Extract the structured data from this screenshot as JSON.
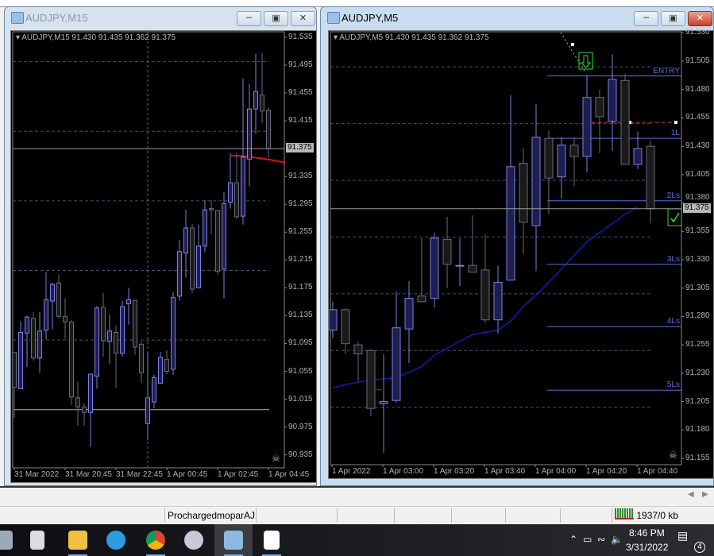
{
  "left_window": {
    "title": "AUDJPY,M15",
    "header": "AUDJPY,M15  91.430 91.435 91.362 91.375",
    "bid_label": "91.375",
    "bid": 91.375,
    "price_labels": [
      "91.535",
      "91.495",
      "91.455",
      "91.415",
      "91.335",
      "91.295",
      "91.255",
      "91.215",
      "91.175",
      "91.135",
      "91.095",
      "91.055",
      "91.015",
      "90.975",
      "90.935"
    ],
    "time_labels": [
      "31 Mar 2022",
      "31 Mar 20:45",
      "31 Mar 22:45",
      "1 Apr 00:45",
      "1 Apr 02:45",
      "1 Apr 04:45"
    ],
    "grid_prices": [
      91.5,
      91.4,
      91.3,
      91.2,
      91.1
    ],
    "horizontal_line_price": 91.0,
    "horizontal_line_color": "#f0a070",
    "signal_line": [
      91.365,
      91.355
    ],
    "candles_ohlc": [
      [
        91.082,
        91.082,
        90.988,
        91.032
      ],
      [
        91.03,
        91.127,
        91.03,
        91.111
      ],
      [
        91.11,
        91.135,
        91.061,
        91.133
      ],
      [
        91.131,
        91.14,
        91.07,
        91.074
      ],
      [
        91.074,
        91.14,
        91.053,
        91.113
      ],
      [
        91.114,
        91.198,
        91.101,
        91.158
      ],
      [
        91.156,
        91.182,
        91.116,
        91.18
      ],
      [
        91.182,
        91.194,
        91.131,
        91.134
      ],
      [
        91.134,
        91.16,
        91.102,
        91.126
      ],
      [
        91.126,
        91.129,
        91.007,
        91.018
      ],
      [
        91.017,
        91.04,
        90.977,
        91.004
      ],
      [
        91.004,
        91.009,
        90.977,
        90.996
      ],
      [
        90.996,
        91.051,
        90.946,
        91.051
      ],
      [
        91.048,
        91.149,
        91.03,
        91.146
      ],
      [
        91.147,
        91.168,
        91.076,
        91.099
      ],
      [
        91.098,
        91.137,
        91.066,
        91.113
      ],
      [
        91.111,
        91.121,
        91.031,
        91.081
      ],
      [
        91.081,
        91.156,
        91.076,
        91.148
      ],
      [
        91.152,
        91.175,
        91.122,
        91.158
      ],
      [
        91.157,
        91.157,
        91.079,
        91.09
      ],
      [
        91.094,
        91.098,
        91.038,
        91.053
      ],
      [
        90.98,
        91.083,
        90.956,
        91.017
      ],
      [
        91.011,
        91.05,
        91.002,
        91.046
      ],
      [
        91.038,
        91.083,
        91.038,
        91.075
      ],
      [
        91.072,
        91.085,
        91.051,
        91.055
      ],
      [
        91.058,
        91.169,
        91.05,
        91.161
      ],
      [
        91.163,
        91.244,
        91.157,
        91.227
      ],
      [
        91.225,
        91.287,
        91.19,
        91.261
      ],
      [
        91.261,
        91.267,
        91.168,
        91.173
      ],
      [
        91.175,
        91.266,
        91.175,
        91.235
      ],
      [
        91.235,
        91.301,
        91.226,
        91.287
      ],
      [
        91.289,
        91.301,
        91.252,
        91.287
      ],
      [
        91.286,
        91.287,
        91.194,
        91.199
      ],
      [
        91.202,
        91.312,
        91.16,
        91.296
      ],
      [
        91.298,
        91.369,
        91.289,
        91.326
      ],
      [
        91.326,
        91.369,
        91.274,
        91.277
      ],
      [
        91.278,
        91.476,
        91.266,
        91.363
      ],
      [
        91.36,
        91.468,
        91.321,
        91.432
      ],
      [
        91.432,
        91.511,
        91.396,
        91.457
      ],
      [
        91.452,
        91.512,
        91.412,
        91.429
      ],
      [
        91.43,
        91.435,
        91.362,
        91.375
      ]
    ]
  },
  "right_window": {
    "title": "AUDJPY,M5",
    "header": "AUDJPY,M5  91.430 91.435 91.362 91.375",
    "bid_label": "91.375",
    "bid": 91.375,
    "price_labels": [
      "91.530",
      "91.505",
      "91.480",
      "91.455",
      "91.430",
      "91.405",
      "91.380",
      "91.355",
      "91.330",
      "91.305",
      "91.280",
      "91.255",
      "91.230",
      "91.205",
      "91.180",
      "91.155"
    ],
    "time_labels": [
      "1 Apr 2022",
      "1 Apr 03:00",
      "1 Apr 03:20",
      "1 Apr 03:40",
      "1 Apr 04:00",
      "1 Apr 04:20",
      "1 Apr 04:40"
    ],
    "grid_prices": [
      91.5,
      91.45,
      91.4,
      91.35,
      91.3,
      91.25,
      91.2
    ],
    "levels": [
      {
        "label": "ENTRY",
        "price": 91.492
      },
      {
        "label": "1L",
        "price": 91.437
      },
      {
        "label": "2Ls",
        "price": 91.382
      },
      {
        "label": "3Ls",
        "price": 91.326
      },
      {
        "label": "4Ls",
        "price": 91.271
      },
      {
        "label": "5Ls",
        "price": 91.215
      }
    ],
    "stop_line_price": 91.451,
    "ma_color": "#1a1ad0",
    "moving_average": [
      91.217,
      91.22,
      91.222,
      91.224,
      91.225,
      91.226,
      91.231,
      91.236,
      91.246,
      91.252,
      91.258,
      91.264,
      91.266,
      91.268,
      91.276,
      91.289,
      91.299,
      91.31,
      91.322,
      91.334,
      91.346,
      91.354,
      91.362,
      91.37,
      91.377
    ],
    "candles_ohlc": [
      [
        91.268,
        91.293,
        91.261,
        91.286
      ],
      [
        91.286,
        91.287,
        91.247,
        91.256
      ],
      [
        91.255,
        91.258,
        91.223,
        91.247
      ],
      [
        91.25,
        91.251,
        91.192,
        91.199
      ],
      [
        91.203,
        91.247,
        91.16,
        91.205
      ],
      [
        91.206,
        91.302,
        91.204,
        91.27
      ],
      [
        91.269,
        91.311,
        91.239,
        91.296
      ],
      [
        91.298,
        91.349,
        91.293,
        91.293
      ],
      [
        91.296,
        91.354,
        91.288,
        91.349
      ],
      [
        91.348,
        91.368,
        91.305,
        91.326
      ],
      [
        91.325,
        91.349,
        91.307,
        91.325
      ],
      [
        91.325,
        91.369,
        91.319,
        91.319
      ],
      [
        91.321,
        91.352,
        91.274,
        91.277
      ],
      [
        91.277,
        91.325,
        91.265,
        91.31
      ],
      [
        91.312,
        91.475,
        91.312,
        91.412
      ],
      [
        91.415,
        91.428,
        91.335,
        91.363
      ],
      [
        91.36,
        91.467,
        91.32,
        91.438
      ],
      [
        91.437,
        91.444,
        91.37,
        91.402
      ],
      [
        91.403,
        91.438,
        91.384,
        91.431
      ],
      [
        91.431,
        91.438,
        91.395,
        91.421
      ],
      [
        91.421,
        91.493,
        91.407,
        91.473
      ],
      [
        91.473,
        91.48,
        91.424,
        91.456
      ],
      [
        91.452,
        91.511,
        91.426,
        91.489
      ],
      [
        91.488,
        91.494,
        91.414,
        91.414
      ],
      [
        91.414,
        91.443,
        91.41,
        91.428
      ],
      [
        91.43,
        91.435,
        91.362,
        91.375
      ]
    ]
  },
  "colors": {
    "bull_outline": "#8080e0",
    "bull_fill": "#1e1e50",
    "bear_outline": "#6a6a80",
    "bear_fill": "#1a1a1a",
    "grid": "#4a4a78",
    "level": "#5d6fd8",
    "stop": "#c03040",
    "marker": "#30e030"
  },
  "status_bar": {
    "profile": "ProchargedmoparAJ",
    "traffic": "1937/0 kb"
  },
  "taskbar": {
    "apps": [
      "calculator-icon",
      "file-explorer-icon",
      "telegram-icon",
      "chrome-icon",
      "paint-icon",
      "metatrader-icon",
      "notepad-icon"
    ],
    "time": "8:46 PM",
    "date": "3/31/2022",
    "notifications": "4"
  }
}
